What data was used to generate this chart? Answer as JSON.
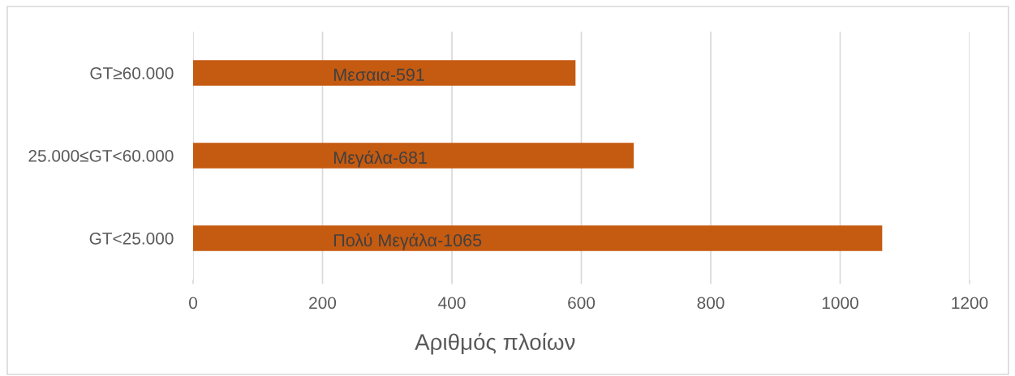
{
  "chart_data": {
    "type": "bar",
    "orientation": "horizontal",
    "categories": [
      "GT≥60.000",
      "25.000≤GT<60.000",
      "GT<25.000"
    ],
    "values": [
      591,
      681,
      1065
    ],
    "color": "#c55a11",
    "value_labels": [
      "Μεσαια-591",
      "Μεγάλα-681",
      "Πολύ Μεγάλα-1065"
    ],
    "xlabel": "Αριθμός πλοίων",
    "xlim": [
      0,
      1200
    ],
    "xticks": [
      0,
      200,
      400,
      600,
      800,
      1000,
      1200
    ],
    "grid": "x"
  }
}
